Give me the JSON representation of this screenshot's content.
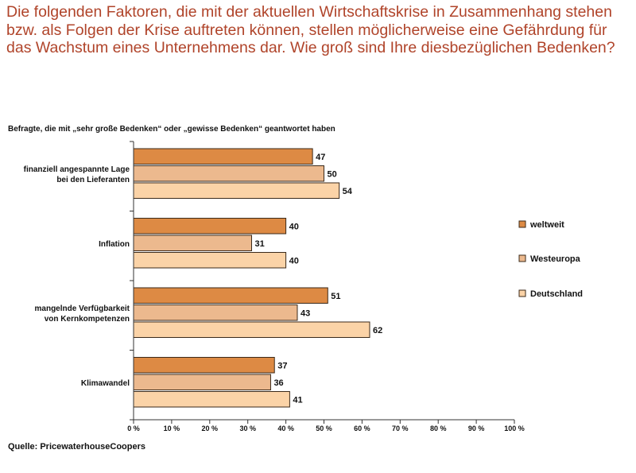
{
  "title": "Die folgenden Faktoren, die mit der aktuellen Wirtschaftskrise in Zusammenhang stehen bzw. als Folgen der Krise auftreten können, stellen möglicherweise eine Gefährdung für das Wachstum eines Unternehmens dar. Wie groß sind Ihre diesbezüglichen Bedenken?",
  "subtitle": "Befragte, die mit „sehr große Bedenken“ oder „gewisse Bedenken“ geantwortet haben",
  "source": "Quelle: PricewaterhouseCoopers",
  "colors": {
    "weltweit": "#dd8a44",
    "westeuropa": "#ecb98e",
    "deutschland": "#fbd3a7",
    "border": "#3b2a1a",
    "title": "#b0442a"
  },
  "chart_data": {
    "type": "bar",
    "orientation": "horizontal",
    "categories": [
      [
        "finanziell angespannte Lage",
        "bei den Lieferanten"
      ],
      [
        "Inflation"
      ],
      [
        "mangelnde Verfügbarkeit",
        "von Kernkompetenzen"
      ],
      [
        "Klimawandel"
      ]
    ],
    "series": [
      {
        "name": "weltweit",
        "values": [
          47,
          40,
          51,
          37
        ]
      },
      {
        "name": "Westeuropa",
        "values": [
          50,
          31,
          43,
          36
        ]
      },
      {
        "name": "Deutschland",
        "values": [
          54,
          40,
          62,
          41
        ]
      }
    ],
    "xlim": [
      0,
      100
    ],
    "xticks": [
      "0 %",
      "10 %",
      "20 %",
      "30 %",
      "40 %",
      "50 %",
      "60 %",
      "70 %",
      "80 %",
      "90 %",
      "100 %"
    ],
    "legend_position": "right"
  }
}
